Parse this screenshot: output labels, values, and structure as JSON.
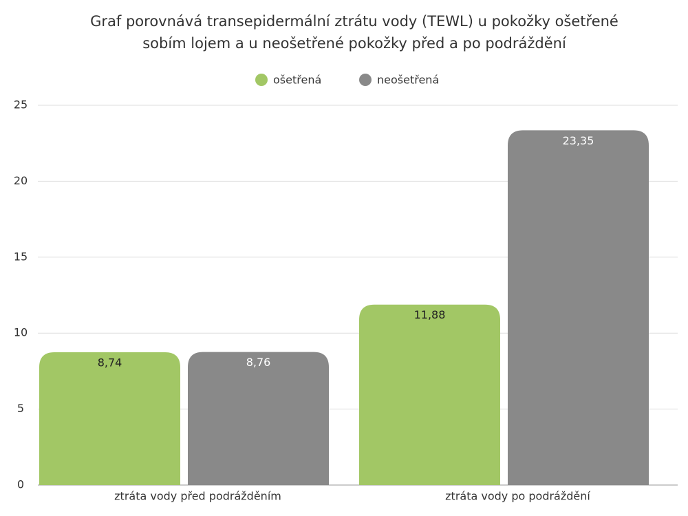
{
  "chart_data": {
    "type": "bar",
    "title": [
      "Graf porovnává transepidermální ztrátu vody (TEWL) u pokožky ošetřené",
      "sobím lojem a u neošetřené pokožky před a po podráždění"
    ],
    "categories": [
      "ztráta vody před podrážděním",
      "ztráta vody po podráždění"
    ],
    "series": [
      {
        "name": "ošetřená",
        "color": "#a2c765",
        "label_color": "#222222",
        "values": [
          8.74,
          11.88
        ],
        "value_labels": [
          "8,74",
          "11,88"
        ]
      },
      {
        "name": "neošetřená",
        "color": "#898989",
        "label_color": "#ffffff",
        "values": [
          8.76,
          23.35
        ],
        "value_labels": [
          "8,76",
          "23,35"
        ]
      }
    ],
    "ylim": [
      0,
      25
    ],
    "yticks": [
      0,
      5,
      10,
      15,
      20,
      25
    ],
    "grid": true,
    "legend": "top"
  }
}
